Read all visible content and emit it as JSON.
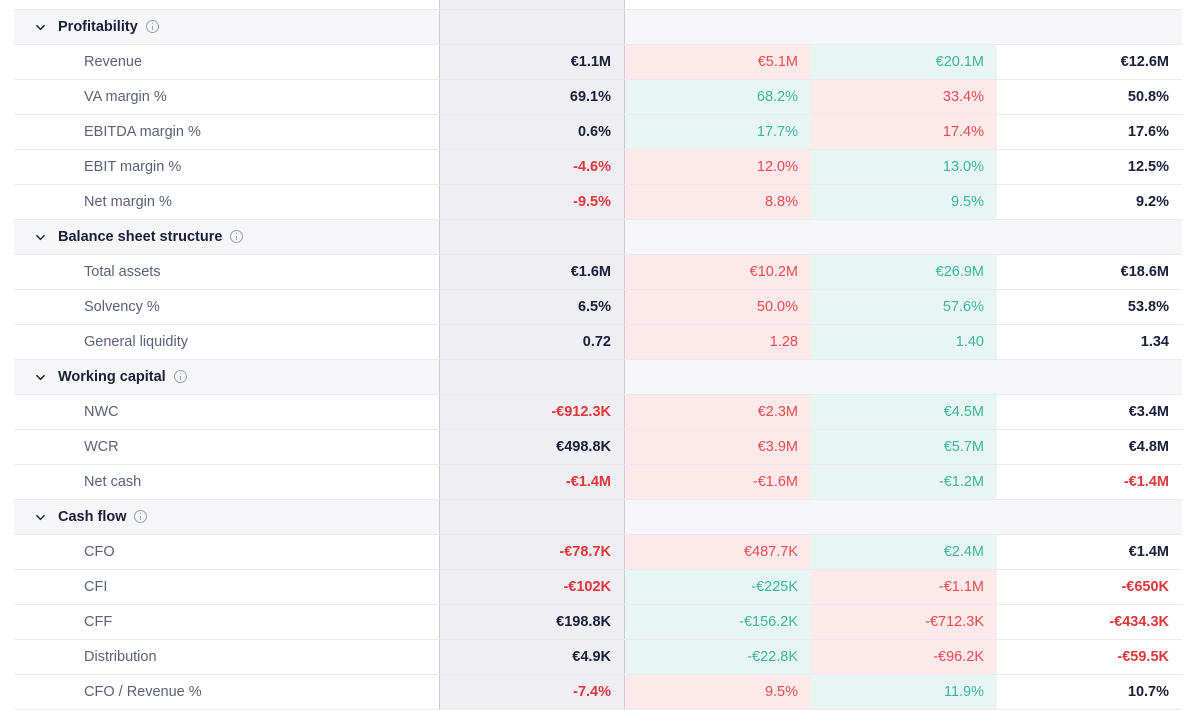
{
  "sections": [
    {
      "title": "Profitability",
      "rows": [
        {
          "label": "Revenue",
          "cells": [
            {
              "value": "€1.1M",
              "tone": "dark",
              "bg": ""
            },
            {
              "value": "€5.1M",
              "tone": "red",
              "bg": "red"
            },
            {
              "value": "€20.1M",
              "tone": "green",
              "bg": "green"
            },
            {
              "value": "€12.6M",
              "tone": "dark",
              "bg": ""
            }
          ]
        },
        {
          "label": "VA margin %",
          "cells": [
            {
              "value": "69.1%",
              "tone": "dark",
              "bg": ""
            },
            {
              "value": "68.2%",
              "tone": "green",
              "bg": "green"
            },
            {
              "value": "33.4%",
              "tone": "red",
              "bg": "red"
            },
            {
              "value": "50.8%",
              "tone": "dark",
              "bg": ""
            }
          ]
        },
        {
          "label": "EBITDA margin %",
          "cells": [
            {
              "value": "0.6%",
              "tone": "dark",
              "bg": ""
            },
            {
              "value": "17.7%",
              "tone": "green",
              "bg": "green"
            },
            {
              "value": "17.4%",
              "tone": "red",
              "bg": "red"
            },
            {
              "value": "17.6%",
              "tone": "dark",
              "bg": ""
            }
          ]
        },
        {
          "label": "EBIT margin %",
          "cells": [
            {
              "value": "-4.6%",
              "tone": "red",
              "bg": ""
            },
            {
              "value": "12.0%",
              "tone": "red",
              "bg": "red"
            },
            {
              "value": "13.0%",
              "tone": "green",
              "bg": "green"
            },
            {
              "value": "12.5%",
              "tone": "dark",
              "bg": ""
            }
          ]
        },
        {
          "label": "Net margin %",
          "cells": [
            {
              "value": "-9.5%",
              "tone": "red",
              "bg": ""
            },
            {
              "value": "8.8%",
              "tone": "red",
              "bg": "red"
            },
            {
              "value": "9.5%",
              "tone": "green",
              "bg": "green"
            },
            {
              "value": "9.2%",
              "tone": "dark",
              "bg": ""
            }
          ]
        }
      ]
    },
    {
      "title": "Balance sheet structure",
      "rows": [
        {
          "label": "Total assets",
          "cells": [
            {
              "value": "€1.6M",
              "tone": "dark",
              "bg": ""
            },
            {
              "value": "€10.2M",
              "tone": "red",
              "bg": "red"
            },
            {
              "value": "€26.9M",
              "tone": "green",
              "bg": "green"
            },
            {
              "value": "€18.6M",
              "tone": "dark",
              "bg": ""
            }
          ]
        },
        {
          "label": "Solvency %",
          "cells": [
            {
              "value": "6.5%",
              "tone": "dark",
              "bg": ""
            },
            {
              "value": "50.0%",
              "tone": "red",
              "bg": "red"
            },
            {
              "value": "57.6%",
              "tone": "green",
              "bg": "green"
            },
            {
              "value": "53.8%",
              "tone": "dark",
              "bg": ""
            }
          ]
        },
        {
          "label": "General liquidity",
          "cells": [
            {
              "value": "0.72",
              "tone": "dark",
              "bg": ""
            },
            {
              "value": "1.28",
              "tone": "red",
              "bg": "red"
            },
            {
              "value": "1.40",
              "tone": "green",
              "bg": "green"
            },
            {
              "value": "1.34",
              "tone": "dark",
              "bg": ""
            }
          ]
        }
      ]
    },
    {
      "title": "Working capital",
      "rows": [
        {
          "label": "NWC",
          "cells": [
            {
              "value": "-€912.3K",
              "tone": "red",
              "bg": ""
            },
            {
              "value": "€2.3M",
              "tone": "red",
              "bg": "red"
            },
            {
              "value": "€4.5M",
              "tone": "green",
              "bg": "green"
            },
            {
              "value": "€3.4M",
              "tone": "dark",
              "bg": ""
            }
          ]
        },
        {
          "label": "WCR",
          "cells": [
            {
              "value": "€498.8K",
              "tone": "dark",
              "bg": ""
            },
            {
              "value": "€3.9M",
              "tone": "red",
              "bg": "red"
            },
            {
              "value": "€5.7M",
              "tone": "green",
              "bg": "green"
            },
            {
              "value": "€4.8M",
              "tone": "dark",
              "bg": ""
            }
          ]
        },
        {
          "label": "Net cash",
          "cells": [
            {
              "value": "-€1.4M",
              "tone": "red",
              "bg": ""
            },
            {
              "value": "-€1.6M",
              "tone": "red",
              "bg": "red"
            },
            {
              "value": "-€1.2M",
              "tone": "green",
              "bg": "green"
            },
            {
              "value": "-€1.4M",
              "tone": "red",
              "bg": ""
            }
          ]
        }
      ]
    },
    {
      "title": "Cash flow",
      "rows": [
        {
          "label": "CFO",
          "cells": [
            {
              "value": "-€78.7K",
              "tone": "red",
              "bg": ""
            },
            {
              "value": "€487.7K",
              "tone": "red",
              "bg": "red"
            },
            {
              "value": "€2.4M",
              "tone": "green",
              "bg": "green"
            },
            {
              "value": "€1.4M",
              "tone": "dark",
              "bg": ""
            }
          ]
        },
        {
          "label": "CFI",
          "cells": [
            {
              "value": "-€102K",
              "tone": "red",
              "bg": ""
            },
            {
              "value": "-€225K",
              "tone": "green",
              "bg": "green"
            },
            {
              "value": "-€1.1M",
              "tone": "red",
              "bg": "red"
            },
            {
              "value": "-€650K",
              "tone": "red",
              "bg": ""
            }
          ]
        },
        {
          "label": "CFF",
          "cells": [
            {
              "value": "€198.8K",
              "tone": "dark",
              "bg": ""
            },
            {
              "value": "-€156.2K",
              "tone": "green",
              "bg": "green"
            },
            {
              "value": "-€712.3K",
              "tone": "red",
              "bg": "red"
            },
            {
              "value": "-€434.3K",
              "tone": "red",
              "bg": ""
            }
          ]
        },
        {
          "label": "Distribution",
          "cells": [
            {
              "value": "€4.9K",
              "tone": "dark",
              "bg": ""
            },
            {
              "value": "-€22.8K",
              "tone": "green",
              "bg": "green"
            },
            {
              "value": "-€96.2K",
              "tone": "red",
              "bg": "red"
            },
            {
              "value": "-€59.5K",
              "tone": "red",
              "bg": ""
            }
          ]
        },
        {
          "label": "CFO / Revenue %",
          "cells": [
            {
              "value": "-7.4%",
              "tone": "red",
              "bg": ""
            },
            {
              "value": "9.5%",
              "tone": "red",
              "bg": "red"
            },
            {
              "value": "11.9%",
              "tone": "green",
              "bg": "green"
            },
            {
              "value": "10.7%",
              "tone": "dark",
              "bg": ""
            }
          ]
        }
      ]
    }
  ],
  "icons": {
    "collapse": "chevron-down-icon",
    "info": "info-icon"
  },
  "colors": {
    "negative": "#e0373b",
    "positive": "#3fb39c",
    "neutral": "#1a1f3a",
    "negative_bg": "#fde8ea",
    "positive_bg": "#e8f6f3"
  }
}
